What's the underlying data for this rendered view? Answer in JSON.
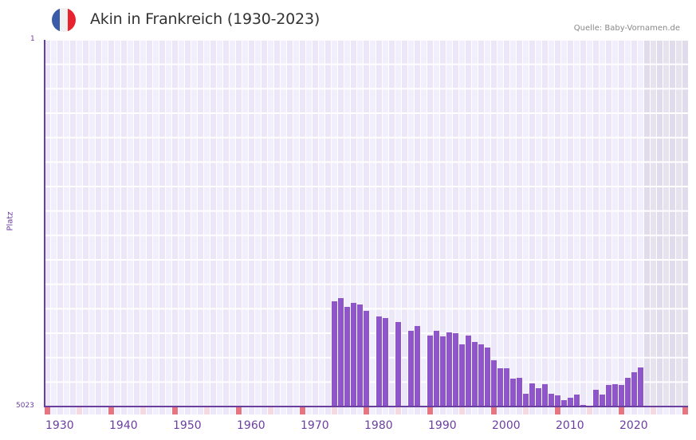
{
  "header": {
    "title": "Akin in Frankreich (1930-2023)",
    "source": "Quelle: Baby-Vornamen.de",
    "flag_colors": [
      "#3a5ba8",
      "#f1f1f1",
      "#e8232f"
    ]
  },
  "axis": {
    "y_title": "Platz",
    "y_top_label": "1",
    "y_bottom_label": "5023",
    "x_labels": [
      "1930",
      "1940",
      "1950",
      "1960",
      "1970",
      "1980",
      "1990",
      "2000",
      "2010",
      "2020"
    ]
  },
  "colors": {
    "bar": "#8e56c8",
    "axis": "#6b3fa0",
    "grid_light": "#f2effc",
    "grid_dark": "#ebe6f8",
    "future_shade": "#e3dfec",
    "decade_marker": "#e57580",
    "half_decade_marker": "#f4d9e2"
  },
  "chart_data": {
    "type": "bar",
    "title": "Akin in Frankreich (1930-2023)",
    "xlabel": "",
    "ylabel": "Platz",
    "y_inverted": true,
    "ylim": [
      5023,
      1
    ],
    "x_range": [
      1930,
      2029
    ],
    "grid": true,
    "categories": [
      1975,
      1976,
      1977,
      1978,
      1979,
      1980,
      1982,
      1983,
      1985,
      1987,
      1988,
      1990,
      1991,
      1992,
      1993,
      1994,
      1995,
      1996,
      1997,
      1998,
      1999,
      2000,
      2001,
      2002,
      2003,
      2004,
      2005,
      2006,
      2007,
      2008,
      2009,
      2010,
      2011,
      2012,
      2013,
      2014,
      2016,
      2017,
      2018,
      2019,
      2020,
      2021,
      2022,
      2023
    ],
    "values": [
      3582,
      3538,
      3658,
      3604,
      3625,
      3713,
      3789,
      3811,
      3866,
      3986,
      3920,
      4051,
      3986,
      4062,
      4008,
      4019,
      4171,
      4051,
      4139,
      4171,
      4215,
      4390,
      4499,
      4499,
      4641,
      4630,
      4848,
      4706,
      4772,
      4717,
      4848,
      4870,
      4935,
      4903,
      4859,
      5001,
      4793,
      4859,
      4728,
      4717,
      4728,
      4630,
      4553,
      4488
    ],
    "missing_years": [
      1981,
      1984,
      1986,
      1989,
      2015
    ]
  }
}
